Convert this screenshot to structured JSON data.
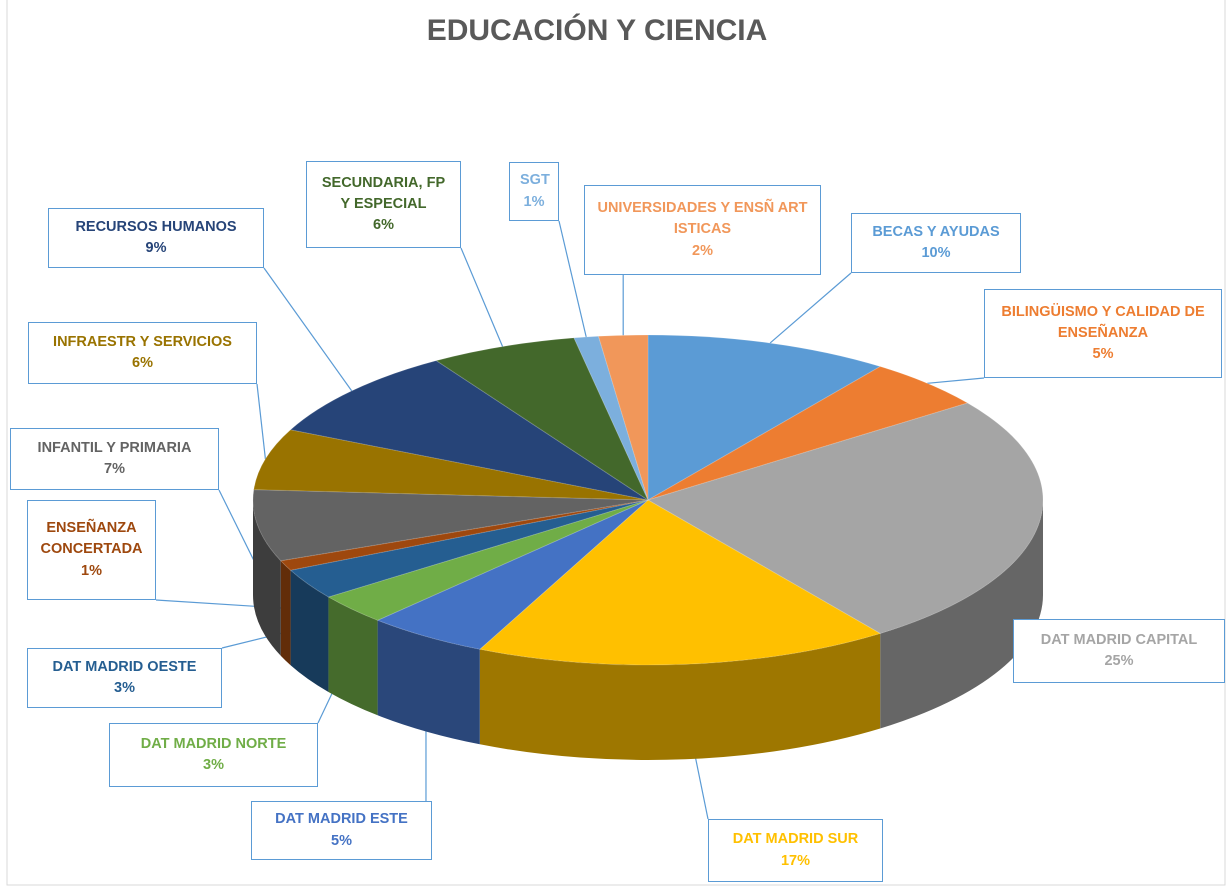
{
  "chart_data": {
    "type": "pie3d",
    "title": "EDUCACIÓN Y CIENCIA",
    "categories": [
      "BECAS Y AYUDAS",
      "BILINGÜISMO Y CALIDAD DE ENSEÑANZA",
      "DAT MADRID CAPITAL",
      "DAT MADRID SUR",
      "DAT MADRID ESTE",
      "DAT MADRID  NORTE",
      "DAT MADRID  OESTE",
      "ENSEÑANZA CONCERTADA",
      "INFANTIL Y PRIMARIA",
      "INFRAESTR Y SERVICIOS",
      "RECURSOS HUMANOS",
      "SECUNDARIA, FP Y ESPECIAL",
      "SGT",
      "UNIVERSIDADES Y ENSÑ ART ISTICAS"
    ],
    "values": [
      10,
      5,
      25,
      17,
      5,
      3,
      3,
      1,
      7,
      6,
      9,
      6,
      1,
      2
    ],
    "value_labels": [
      "10%",
      "5%",
      "25%",
      "17%",
      "5%",
      "3%",
      "3%",
      "1%",
      "7%",
      "6%",
      "9%",
      "6%",
      "1%",
      "2%"
    ],
    "colors": [
      "#5b9bd5",
      "#ed7d31",
      "#a5a5a5",
      "#ffc000",
      "#4472c4",
      "#70ad47",
      "#255e91",
      "#9e480e",
      "#636363",
      "#997300",
      "#264478",
      "#43682b",
      "#7cafdd",
      "#f1975a"
    ]
  }
}
